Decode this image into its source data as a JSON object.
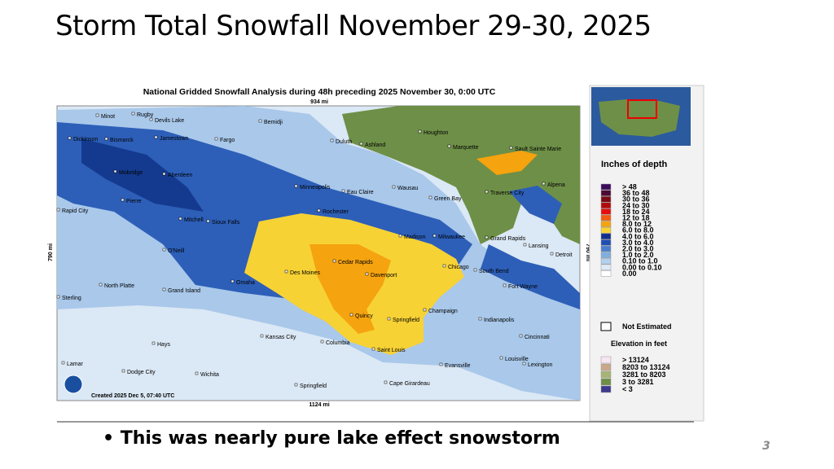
{
  "title": "Storm Total Snowfall November 29-30, 2025",
  "map": {
    "title": "National Gridded Snowfall Analysis during 48h preceding 2025 November 30, 0:00 UTC",
    "scale_top": "934 mi",
    "scale_bottom": "1124 mi",
    "scale_left": "790 mi",
    "scale_right": "790 mi",
    "credit": "Created 2025 Dec 5, 07:40 UTC",
    "cities": [
      "Minot",
      "Rugby",
      "Devils Lake",
      "Bemidji",
      "Houghton",
      "Dickinson",
      "Bismarck",
      "Jamestown",
      "Fargo",
      "Duluth",
      "Ashland",
      "Marquette",
      "Sault Sainte Marie",
      "Mobridge",
      "Aberdeen",
      "Minneapolis",
      "Eau Claire",
      "Wausau",
      "Traverse City",
      "Alpena",
      "Green Bay",
      "Pierre",
      "Rapid City",
      "Rochester",
      "Mitchell",
      "Sioux Falls",
      "Madison",
      "Milwaukee",
      "Grand Rapids",
      "Lansing",
      "O'Neill",
      "Detroit",
      "Cedar Rapids",
      "Des Moines",
      "Chicago",
      "South Bend",
      "Omaha",
      "Davenport",
      "North Platte",
      "Grand Island",
      "Fort Wayne",
      "Sterling",
      "Champaign",
      "Quincy",
      "Springfield",
      "Indianapolis",
      "Kansas City",
      "Columbia",
      "Cincinnati",
      "Hays",
      "Saint Louis",
      "Louisville",
      "Lamar",
      "Lexington",
      "Evansville",
      "Dodge City",
      "Wichita",
      "Springfield",
      "Cape Girardeau"
    ]
  },
  "legend": {
    "title": "Inches of depth",
    "rows": [
      {
        "label": ">   48",
        "color": "#3d0a5c"
      },
      {
        "label": "36   to   48",
        "color": "#4a0a33"
      },
      {
        "label": "30   to   36",
        "color": "#7a0a14"
      },
      {
        "label": "24   to   30",
        "color": "#b30a0a"
      },
      {
        "label": "18   to   24",
        "color": "#e60d0d"
      },
      {
        "label": "12   to   18",
        "color": "#f25c0d"
      },
      {
        "label": "8.0   to   12",
        "color": "#f5a30f"
      },
      {
        "label": "6.0   to   8.0",
        "color": "#f7d235"
      },
      {
        "label": "4.0   to   6.0",
        "color": "#132f8c"
      },
      {
        "label": "3.0   to   4.0",
        "color": "#1e4fb3"
      },
      {
        "label": "2.0   to   3.0",
        "color": "#4a7fcc"
      },
      {
        "label": "1.0   to   2.0",
        "color": "#80aedd"
      },
      {
        "label": "0.10   to   1.0",
        "color": "#b3d0ec"
      },
      {
        "label": "0.00   to   0.10",
        "color": "#dde9f6"
      },
      {
        "label": "0.00",
        "color": "#ffffff"
      }
    ],
    "not_estimated": "Not Estimated",
    "elevation_title": "Elevation in feet",
    "elevation_rows": [
      {
        "label": ">   13124",
        "color": "#f5e6f2"
      },
      {
        "label": "8203   to   13124",
        "color": "#c9a88a"
      },
      {
        "label": "3281   to   8203",
        "color": "#a7b474"
      },
      {
        "label": "3   to   3281",
        "color": "#6e8f47"
      },
      {
        "label": "<   3",
        "color": "#3d3a8c"
      }
    ]
  },
  "bullet": "• This was nearly pure lake effect snowstorm",
  "page_number": "3"
}
